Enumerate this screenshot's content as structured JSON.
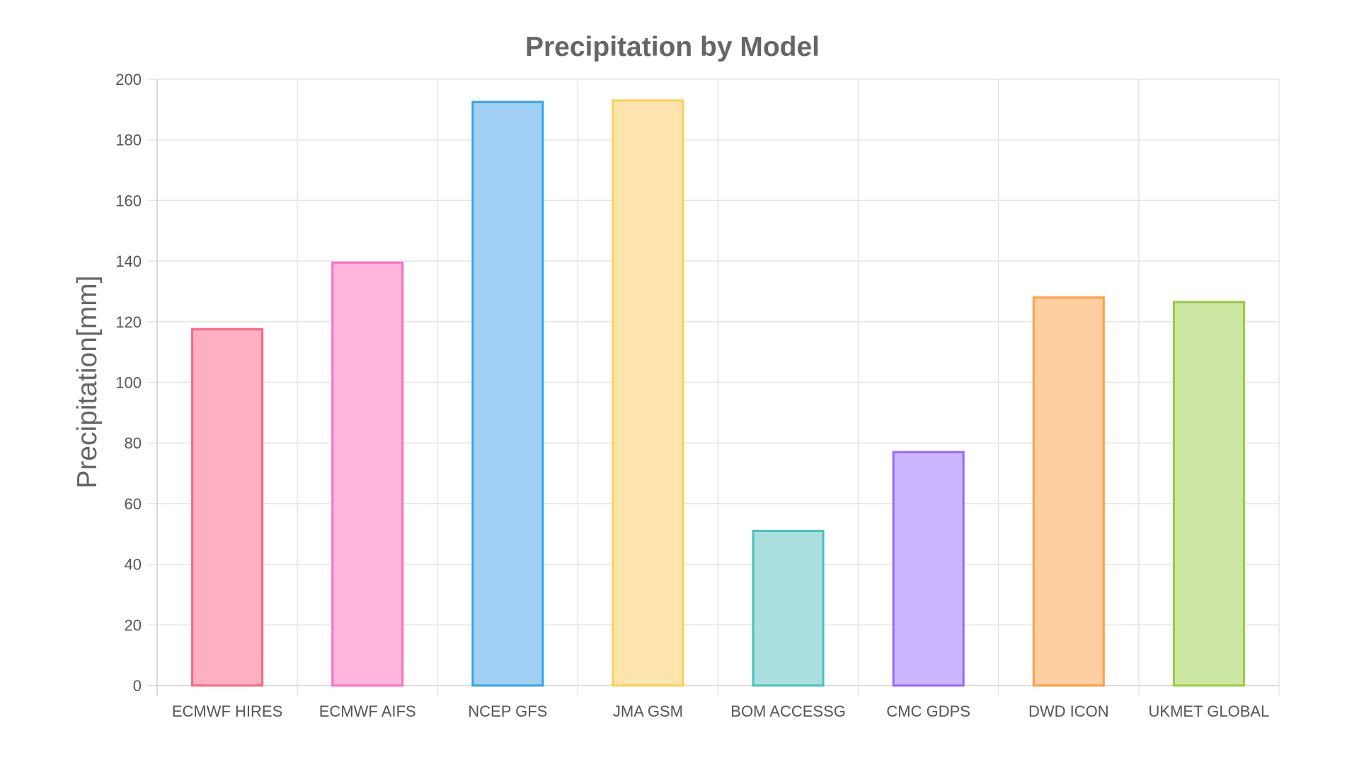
{
  "chart_data": {
    "type": "bar",
    "title": "Precipitation by Model",
    "xlabel": "",
    "ylabel": "Precipitation[mm]",
    "ylim": [
      0,
      200
    ],
    "y_ticks": [
      0,
      20,
      40,
      60,
      80,
      100,
      120,
      140,
      160,
      180,
      200
    ],
    "grid": true,
    "legend": "none",
    "categories": [
      "ECMWF HIRES",
      "ECMWF AIFS",
      "NCEP GFS",
      "JMA GSM",
      "BOM ACCESSG",
      "CMC GDPS",
      "DWD ICON",
      "UKMET GLOBAL"
    ],
    "values": [
      117.5,
      139.5,
      192.5,
      193,
      51,
      77,
      128,
      126.5
    ],
    "colors": {
      "fill": [
        "#ffb1c1",
        "#ffb6dc",
        "#a2d0f5",
        "#ffe4ae",
        "#aadfdf",
        "#ccb6ff",
        "#ffcfa2",
        "#cde6a2"
      ],
      "border": [
        "#ff6384",
        "#ff6ec0",
        "#36a2eb",
        "#ffcd56",
        "#4bc0c0",
        "#9966ff",
        "#ff9f40",
        "#97cc3d"
      ],
      "grid": "#e5e5e5",
      "text": "#666666"
    }
  }
}
